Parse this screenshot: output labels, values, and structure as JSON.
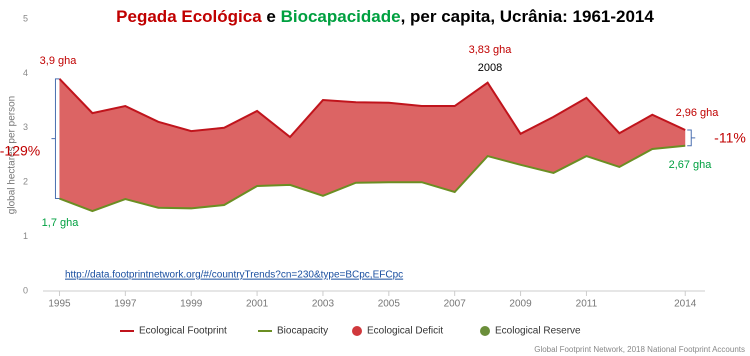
{
  "chart_data": {
    "type": "line",
    "title_parts": [
      {
        "text": "Pegada Ecológica",
        "color": "#c00000"
      },
      {
        "text": " e ",
        "color": "#000000"
      },
      {
        "text": "Biocapacidade",
        "color": "#00a040"
      },
      {
        "text": ", per capita, Ucrânia: 1961-2014",
        "color": "#000000"
      }
    ],
    "y_label": "global hectares per person",
    "x": [
      1995,
      1996,
      1997,
      1998,
      1999,
      2000,
      2001,
      2002,
      2003,
      2004,
      2005,
      2006,
      2007,
      2008,
      2009,
      2010,
      2011,
      2012,
      2013,
      2014
    ],
    "series": [
      {
        "name": "Ecological Footprint",
        "color": "#c0141c",
        "values": [
          3.9,
          3.27,
          3.4,
          3.11,
          2.94,
          3.0,
          3.31,
          2.83,
          3.51,
          3.47,
          3.46,
          3.4,
          3.4,
          3.83,
          2.89,
          3.2,
          3.55,
          2.9,
          3.24,
          2.96
        ]
      },
      {
        "name": "Biocapacity",
        "color": "#6b8e23",
        "values": [
          1.7,
          1.47,
          1.69,
          1.53,
          1.52,
          1.58,
          1.93,
          1.95,
          1.75,
          1.99,
          2.0,
          2.0,
          1.82,
          2.48,
          2.32,
          2.17,
          2.48,
          2.28,
          2.61,
          2.67
        ]
      }
    ],
    "area": {
      "name": "Ecological Deficit",
      "color": "#dc6464"
    },
    "legend_extra": [
      {
        "name": "Ecological Deficit",
        "color": "#d0383c"
      },
      {
        "name": "Ecological Reserve",
        "color": "#6b8e3a"
      }
    ],
    "xlim": [
      1994.5,
      2014.6
    ],
    "xticks": [
      1995,
      1997,
      1999,
      2001,
      2003,
      2005,
      2007,
      2009,
      2011,
      2014
    ],
    "ylim": [
      0,
      5
    ],
    "yticks": [
      0,
      1,
      2,
      3,
      4,
      5
    ],
    "annotations": [
      {
        "text": "3,9 gha",
        "color": "#c00000"
      },
      {
        "text": "1,7 gha",
        "color": "#00a040"
      },
      {
        "text": "-129%",
        "color": "#c00000"
      },
      {
        "text": "3,83 gha",
        "color": "#c00000"
      },
      {
        "text": "2008",
        "color": "#000000"
      },
      {
        "text": "2,96 gha",
        "color": "#c00000"
      },
      {
        "text": "2,67 gha",
        "color": "#00a040"
      },
      {
        "text": "-11%",
        "color": "#c00000"
      }
    ],
    "link": "http://data.footprintnetwork.org/#/countryTrends?cn=230&type=BCpc,EFCpc",
    "source": "Global Footprint Network, 2018 National Footprint Accounts"
  }
}
